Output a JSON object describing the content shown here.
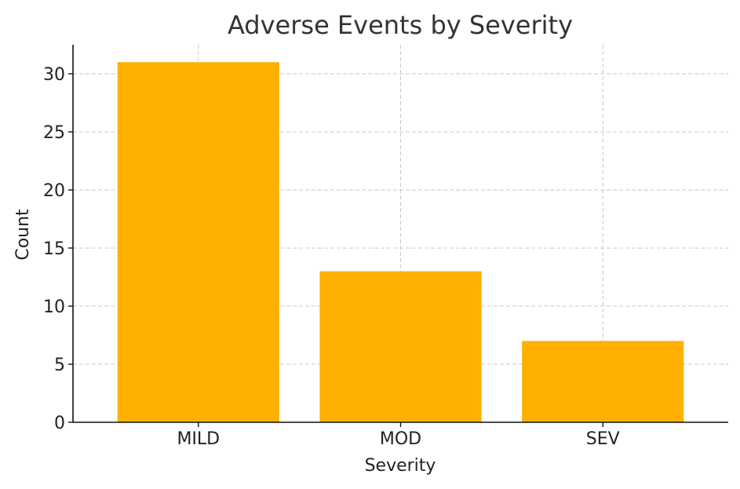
{
  "chart_data": {
    "type": "bar",
    "title": "Adverse Events by Severity",
    "xlabel": "Severity",
    "ylabel": "Count",
    "categories": [
      "MILD",
      "MOD",
      "SEV"
    ],
    "values": [
      31,
      13,
      7
    ],
    "ylim": [
      0,
      32.5
    ],
    "yticks": [
      0,
      5,
      10,
      15,
      20,
      25,
      30
    ],
    "grid": true,
    "bar_color": "#FFB000"
  }
}
